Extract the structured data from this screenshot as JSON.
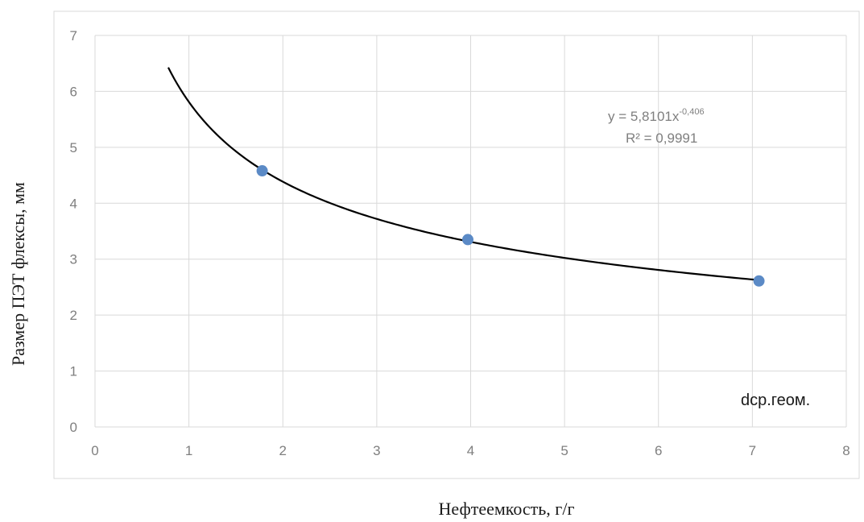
{
  "chart_data": {
    "type": "scatter",
    "xlabel": "Нефтеемкость, г/г",
    "ylabel": "Размер ПЭТ флексы, мм",
    "xlim": [
      0,
      8
    ],
    "ylim": [
      0,
      7
    ],
    "x_ticks": [
      0,
      1,
      2,
      3,
      4,
      5,
      6,
      7,
      8
    ],
    "y_ticks": [
      0,
      1,
      2,
      3,
      4,
      5,
      6,
      7
    ],
    "grid": true,
    "series": [
      {
        "name": "dcp.геом.",
        "points": [
          {
            "x": 1.78,
            "y": 4.58
          },
          {
            "x": 3.97,
            "y": 3.35
          },
          {
            "x": 7.07,
            "y": 2.61
          }
        ],
        "color": "#5b8ac6"
      }
    ],
    "trendline": {
      "type": "power",
      "a": 5.8101,
      "b": -0.406,
      "x_from": 0.78,
      "x_to": 7.07,
      "color": "#000000",
      "equation_main": "y = 5,8101x",
      "equation_exponent": "-0,406",
      "r2_text": "R² = 0,9991"
    },
    "series_label": "dcp.геом."
  }
}
